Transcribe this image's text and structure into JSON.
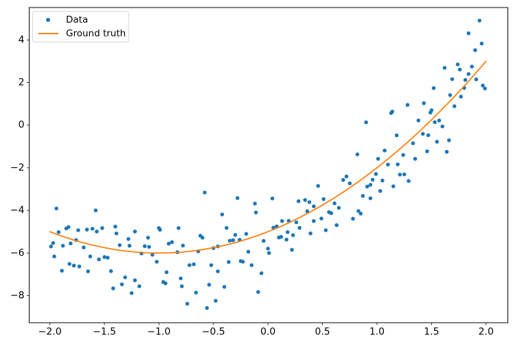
{
  "chart_data": {
    "type": "scatter",
    "title": "",
    "xlabel": "",
    "ylabel": "",
    "grid": false,
    "xlim": [
      -2.19,
      2.2
    ],
    "ylim": [
      -9.27,
      5.52
    ],
    "x_ticks": [
      -2.0,
      -1.5,
      -1.0,
      -0.5,
      0.0,
      0.5,
      1.0,
      1.5,
      2.0
    ],
    "x_tick_labels": [
      "−2.0",
      "−1.5",
      "−1.0",
      "−0.5",
      "0.0",
      "0.5",
      "1.0",
      "1.5",
      "2.0"
    ],
    "y_ticks": [
      -8,
      -6,
      -4,
      -2,
      0,
      2,
      4
    ],
    "y_tick_labels": [
      "−8",
      "−6",
      "−4",
      "−2",
      "0",
      "2",
      "4"
    ],
    "axis_color": "#000000",
    "legend": {
      "position": "upper left",
      "entries": [
        "Data",
        "Ground truth"
      ]
    },
    "series": [
      {
        "name": "Data",
        "type": "scatter",
        "color": "#1f77b4",
        "x": [
          -1.94,
          -1.58,
          -1.99,
          -1.97,
          -1.96,
          -1.92,
          -1.88,
          -1.85,
          -1.83,
          -1.89,
          -1.82,
          -1.78,
          -1.81,
          -1.76,
          -1.74,
          -1.73,
          -1.69,
          -1.66,
          -1.65,
          -1.63,
          -1.61,
          -1.57,
          -1.55,
          -1.52,
          -1.5,
          -1.47,
          -1.44,
          -1.4,
          -1.39,
          -1.36,
          -1.42,
          -1.34,
          -1.31,
          -1.28,
          -1.27,
          -1.22,
          -1.22,
          -1.18,
          -1.16,
          -1.13,
          -1.1,
          -1.09,
          -1.06,
          -1.25,
          -1.02,
          -1.0,
          -0.99,
          -0.96,
          -0.94,
          -0.93,
          -0.91,
          -0.88,
          -0.82,
          -0.83,
          -0.8,
          -0.79,
          -0.78,
          -0.74,
          -0.62,
          -0.6,
          -0.64,
          -0.68,
          -0.72,
          -0.52,
          -0.5,
          -0.46,
          -0.46,
          -0.54,
          -0.66,
          -0.56,
          -0.48,
          -0.4,
          -0.38,
          -0.35,
          -0.32,
          -0.3,
          -0.26,
          -0.2,
          -0.36,
          -0.25,
          -0.23,
          -0.18,
          -0.15,
          -0.06,
          -0.09,
          0.0,
          0.01,
          -0.04,
          0.05,
          0.08,
          0.1,
          0.12,
          0.13,
          0.17,
          0.19,
          0.18,
          0.23,
          0.26,
          0.29,
          0.22,
          0.39,
          0.42,
          0.49,
          0.53,
          0.63,
          -0.58,
          -0.42,
          -0.28,
          -0.12,
          -0.11,
          0.04,
          0.28,
          0.34,
          0.38,
          0.36,
          0.42,
          0.46,
          0.51,
          0.56,
          0.58,
          0.61,
          0.65,
          0.69,
          0.72,
          0.9,
          1.13,
          1.38,
          1.49,
          1.53,
          1.57,
          1.6,
          1.18,
          1.47,
          1.42,
          1.55,
          1.66,
          1.33,
          1.07,
          1.46,
          1.64,
          0.82,
          1.01,
          1.24,
          1.35,
          1.1,
          1.19,
          0.99,
          1.21,
          1.25,
          0.96,
          1.05,
          0.94,
          1.29,
          1.15,
          0.91,
          0.75,
          1.03,
          0.87,
          0.94,
          0.83,
          0.85,
          0.78,
          1.94,
          1.84,
          1.96,
          1.9,
          1.62,
          1.74,
          1.76,
          1.87,
          1.81,
          1.91,
          1.8,
          1.97,
          1.99,
          1.69,
          1.52,
          1.67,
          1.77,
          1.43,
          1.28,
          1.14,
          1.71,
          1.5,
          1.84
        ],
        "y": [
          -3.91,
          -4.0,
          -5.69,
          -5.53,
          -6.16,
          -5.02,
          -5.66,
          -4.85,
          -4.78,
          -6.83,
          -6.51,
          -6.59,
          -5.55,
          -5.39,
          -4.93,
          -6.63,
          -5.74,
          -4.9,
          -6.86,
          -6.16,
          -4.86,
          -4.99,
          -6.3,
          -4.83,
          -6.19,
          -6.22,
          -6.85,
          -4.76,
          -5.08,
          -5.63,
          -7.66,
          -7.47,
          -7.14,
          -5.34,
          -5.66,
          -4.99,
          -7.28,
          -7.56,
          -6.02,
          -5.68,
          -5.28,
          -5.71,
          -6.08,
          -7.88,
          -6.41,
          -4.83,
          -4.91,
          -7.36,
          -7.42,
          -6.9,
          -5.56,
          -5.49,
          -4.83,
          -5.96,
          -7.19,
          -7.56,
          -5.65,
          -8.38,
          -5.19,
          -5.28,
          -5.92,
          -6.53,
          -6.57,
          -6.57,
          -5.77,
          -6.86,
          -5.69,
          -7.49,
          -7.86,
          -8.58,
          -8.24,
          -7.59,
          -4.82,
          -5.42,
          -5.4,
          -5.15,
          -5.38,
          -5.1,
          -6.42,
          -6.38,
          -6.41,
          -5.94,
          -6.57,
          -6.95,
          -7.83,
          -5.79,
          -6.0,
          -5.43,
          -4.81,
          -4.75,
          -5.27,
          -5.24,
          -4.5,
          -5.37,
          -4.49,
          -5.02,
          -5.16,
          -4.56,
          -4.82,
          -5.85,
          -5.08,
          -4.5,
          -4.38,
          -4.93,
          -4.69,
          -3.16,
          -4.19,
          -3.42,
          -3.68,
          -4.1,
          -3.44,
          -3.57,
          -3.51,
          -3.61,
          -4.04,
          -3.81,
          -2.85,
          -3.47,
          -4.08,
          -4.13,
          -3.67,
          -3.88,
          -2.57,
          -2.41,
          0.13,
          0.57,
          0.22,
          0.59,
          0.14,
          0.22,
          -0.06,
          -0.48,
          -0.47,
          -0.41,
          -0.78,
          -0.71,
          -0.85,
          -1.19,
          -1.23,
          -1.25,
          -1.37,
          -1.58,
          -1.4,
          -1.58,
          -1.85,
          -1.84,
          -2.29,
          -2.32,
          -2.31,
          -2.56,
          -2.6,
          -2.8,
          -2.62,
          -2.87,
          -2.88,
          -2.73,
          -3.09,
          -3.32,
          -3.43,
          -4.03,
          -4.15,
          -4.39,
          4.91,
          4.31,
          3.83,
          3.52,
          2.69,
          2.85,
          2.61,
          2.75,
          2.12,
          2.15,
          1.75,
          1.86,
          1.72,
          2.16,
          1.74,
          1.41,
          1.34,
          1.03,
          0.95,
          0.64,
          0.89,
          0.7,
          2.4
        ]
      },
      {
        "name": "Ground truth",
        "type": "line",
        "color": "#ff7f0e",
        "expression": "y = x^2 + 2x - 5",
        "x": [
          -2.0,
          -1.9,
          -1.8,
          -1.7,
          -1.6,
          -1.5,
          -1.4,
          -1.3,
          -1.2,
          -1.1,
          -1.0,
          -0.9,
          -0.8,
          -0.7,
          -0.6,
          -0.5,
          -0.4,
          -0.3,
          -0.2,
          -0.1,
          0.0,
          0.1,
          0.2,
          0.3,
          0.4,
          0.5,
          0.6,
          0.7,
          0.8,
          0.9,
          1.0,
          1.1,
          1.2,
          1.3,
          1.4,
          1.5,
          1.6,
          1.7,
          1.8,
          1.9,
          2.0
        ],
        "y": [
          -5.0,
          -5.19,
          -5.36,
          -5.51,
          -5.64,
          -5.75,
          -5.84,
          -5.91,
          -5.96,
          -5.99,
          -6.0,
          -5.99,
          -5.96,
          -5.91,
          -5.84,
          -5.75,
          -5.64,
          -5.51,
          -5.36,
          -5.19,
          -5.0,
          -4.79,
          -4.56,
          -4.31,
          -4.04,
          -3.75,
          -3.44,
          -3.11,
          -2.76,
          -2.39,
          -2.0,
          -1.59,
          -1.16,
          -0.71,
          -0.24,
          0.25,
          0.76,
          1.29,
          1.84,
          2.41,
          3.0
        ]
      }
    ]
  }
}
